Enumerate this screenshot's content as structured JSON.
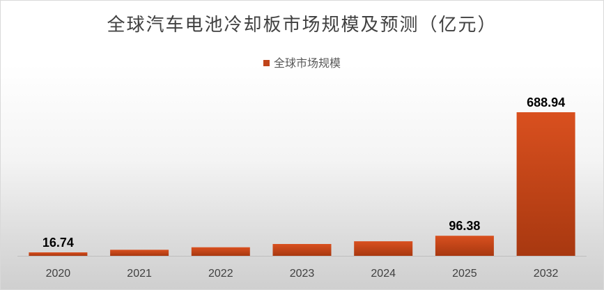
{
  "chart_data": {
    "type": "bar",
    "title": "全球汽车电池冷却板市场规模及预测（亿元）",
    "legend": {
      "position": "top",
      "entries": [
        "全球市场规模"
      ]
    },
    "series": [
      {
        "name": "全球市场规模",
        "color": "#c0441a",
        "values": [
          16.74,
          29,
          41,
          57,
          70,
          96.38,
          688.94
        ],
        "data_labels": [
          "16.74",
          "",
          "",
          "",
          "",
          "96.38",
          "688.94"
        ]
      }
    ],
    "categories": [
      "2020",
      "2021",
      "2022",
      "2023",
      "2024",
      "2025",
      "2032"
    ],
    "ylim": [
      0,
      720
    ],
    "xlabel": "",
    "ylabel": "",
    "grid": false
  }
}
